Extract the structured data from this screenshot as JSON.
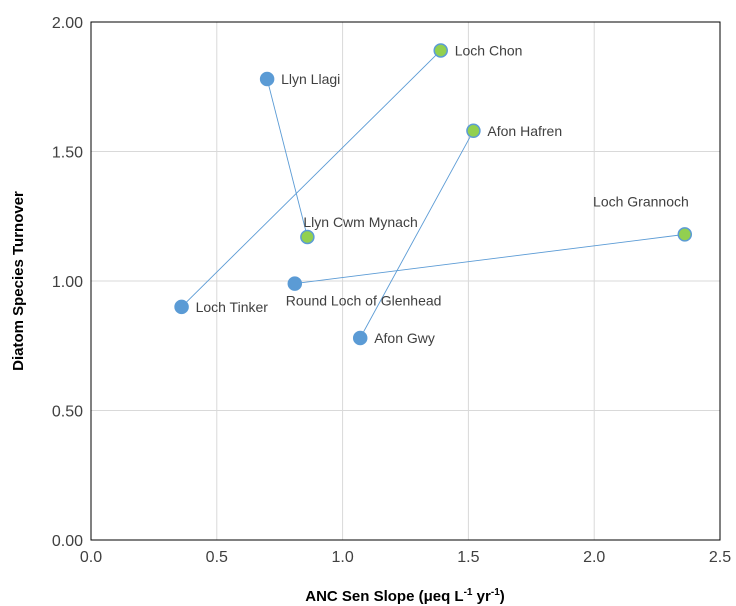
{
  "chart_data": {
    "type": "scatter",
    "title": "",
    "xlabel": "ANC Sen Slope (μeq L",
    "xlabel_sup1": "-1",
    "xlabel_mid": " yr",
    "xlabel_sup2": "-1",
    "xlabel_end": ")",
    "ylabel": "Diatom Species Turnover",
    "xlim": [
      0,
      2.5
    ],
    "ylim": [
      0,
      2
    ],
    "x_ticks": [
      0,
      0.5,
      1,
      1.5,
      2,
      2.5
    ],
    "x_tick_labels": [
      "0.0",
      "0.5",
      "1.0",
      "1.5",
      "2.0",
      "2.5"
    ],
    "y_ticks": [
      0,
      0.5,
      1,
      1.5,
      2
    ],
    "y_tick_labels": [
      "0.00",
      "0.50",
      "1.00",
      "1.50",
      "2.00"
    ],
    "grid": true,
    "colors": {
      "blue": "#5b9bd5",
      "green": "#92d050",
      "line": "#5b9bd5",
      "grid": "#d9d9d9"
    },
    "points": [
      {
        "label": "Llyn Llagi",
        "x": 0.7,
        "y": 1.78,
        "color": "blue",
        "label_pos": "right"
      },
      {
        "label": "Llyn Cwm Mynach",
        "x": 0.86,
        "y": 1.17,
        "color": "green",
        "label_pos": "above"
      },
      {
        "label": "Loch Tinker",
        "x": 0.36,
        "y": 0.9,
        "color": "blue",
        "label_pos": "right"
      },
      {
        "label": "Loch Chon",
        "x": 1.39,
        "y": 1.89,
        "color": "green",
        "label_pos": "right"
      },
      {
        "label": "Afon Gwy",
        "x": 1.07,
        "y": 0.78,
        "color": "blue",
        "label_pos": "right"
      },
      {
        "label": "Afon Hafren",
        "x": 1.52,
        "y": 1.58,
        "color": "green",
        "label_pos": "right"
      },
      {
        "label": "Round Loch of Glenhead",
        "x": 0.81,
        "y": 0.99,
        "color": "blue",
        "label_pos": "below"
      },
      {
        "label": "Loch Grannoch",
        "x": 2.36,
        "y": 1.18,
        "color": "green",
        "label_pos": "above-left"
      }
    ],
    "links": [
      [
        "Llyn Llagi",
        "Llyn Cwm Mynach"
      ],
      [
        "Loch Tinker",
        "Loch Chon"
      ],
      [
        "Afon Gwy",
        "Afon Hafren"
      ],
      [
        "Round Loch of Glenhead",
        "Loch Grannoch"
      ]
    ]
  }
}
